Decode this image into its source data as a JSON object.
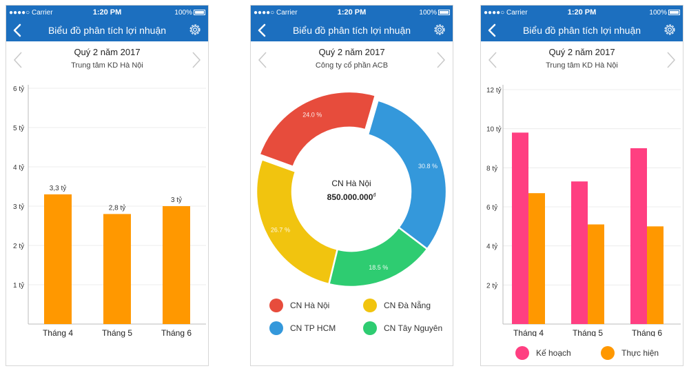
{
  "statusbar": {
    "carrier": "●●●●○ Carrier",
    "time": "1:20 PM",
    "battery": "100%"
  },
  "nav": {
    "title": "Biểu đồ phân tích lợi nhuận"
  },
  "colors": {
    "brand": "#1c6fbf",
    "orange": "#ff9800",
    "pink": "#ff3f81",
    "red": "#e74c3c",
    "blue": "#3498db",
    "yellow": "#f1c40f",
    "green": "#2ecc71"
  },
  "screens": [
    {
      "period": "Quý 2 năm 2017",
      "unit": "Trung tâm KD Hà Nội",
      "chart_data": {
        "type": "bar",
        "categories": [
          "Tháng 4",
          "Tháng 5",
          "Tháng 6"
        ],
        "values": [
          3.3,
          2.8,
          3
        ],
        "data_labels": [
          "3,3 tỷ",
          "2,8 tỷ",
          "3 tỷ"
        ],
        "yticks": [
          1,
          2,
          3,
          4,
          5,
          6
        ],
        "ytick_labels": [
          "1 tỷ",
          "2 tỷ",
          "3 tỷ",
          "4 tỷ",
          "5 tỷ",
          "6 tỷ"
        ],
        "ylim": [
          0,
          6
        ],
        "color": "#ff9800",
        "grid": true
      }
    },
    {
      "period": "Quý 2 năm 2017",
      "unit": "Công ty cổ phần ACB",
      "center_label": "CN Hà Nội",
      "center_value": "850.000.000",
      "center_currency": "đ",
      "chart_data": {
        "type": "pie",
        "labels": [
          "CN Hà Nội",
          "CN TP HCM",
          "CN Tây Nguyên",
          "CN Đà Nẵng"
        ],
        "values": [
          24.0,
          30.8,
          18.5,
          26.7
        ],
        "value_labels": [
          "24.0 %",
          "30.8 %",
          "18.5 %",
          "26.7 %"
        ],
        "colors": [
          "#e74c3c",
          "#3498db",
          "#2ecc71",
          "#f1c40f"
        ],
        "donut": true
      },
      "legend": [
        {
          "label": "CN Hà Nội",
          "color": "#e74c3c"
        },
        {
          "label": "CN Đà Nẵng",
          "color": "#f1c40f"
        },
        {
          "label": "CN TP HCM",
          "color": "#3498db"
        },
        {
          "label": "CN Tây Nguyên",
          "color": "#2ecc71"
        }
      ]
    },
    {
      "period": "Quý 2 năm 2017",
      "unit": "Trung tâm KD Hà Nội",
      "chart_data": {
        "type": "bar",
        "categories": [
          "Tháng 4",
          "Tháng 5",
          "Tháng 6"
        ],
        "series": [
          {
            "name": "Kế hoạch",
            "values": [
              9.8,
              7.3,
              9.0
            ],
            "color": "#ff3f81"
          },
          {
            "name": "Thực hiện",
            "values": [
              6.7,
              5.1,
              5.0
            ],
            "color": "#ff9800"
          }
        ],
        "yticks": [
          2,
          4,
          6,
          8,
          10,
          12
        ],
        "ytick_labels": [
          "2 tỷ",
          "4 tỷ",
          "6 tỷ",
          "8 tỷ",
          "10 tỷ",
          "12 tỷ"
        ],
        "ylim": [
          0,
          12
        ],
        "grid": true,
        "legend": "bottom"
      }
    }
  ]
}
